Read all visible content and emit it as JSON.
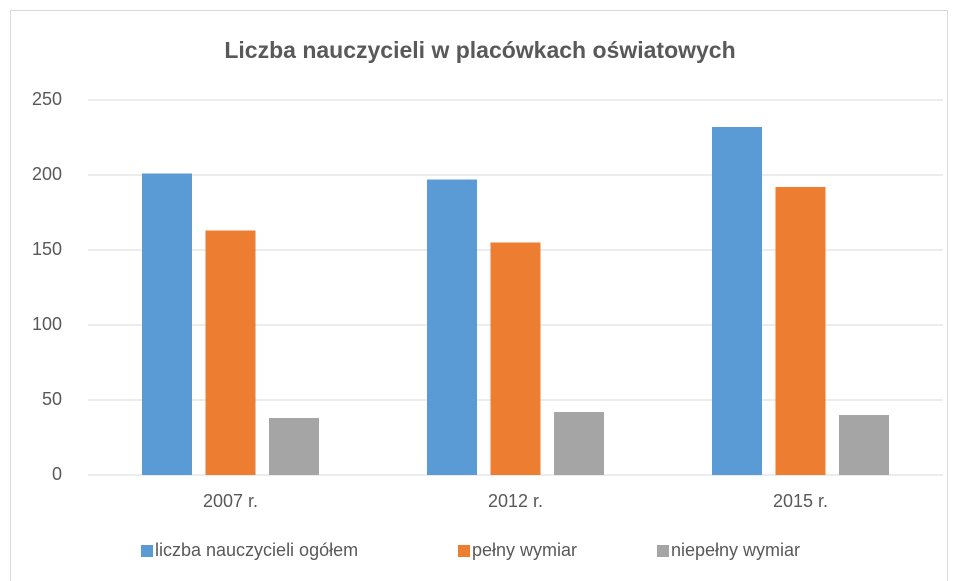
{
  "chart_data": {
    "type": "bar",
    "title": "Liczba nauczycieli w placówkach oświatowych",
    "categories": [
      "2007 r.",
      "2012 r.",
      "2015 r."
    ],
    "series": [
      {
        "name": "liczba nauczycieli ogółem",
        "color": "#5b9bd5",
        "values": [
          201,
          197,
          232
        ]
      },
      {
        "name": "pełny wymiar",
        "color": "#ed7d31",
        "values": [
          163,
          155,
          192
        ]
      },
      {
        "name": "niepełny wymiar",
        "color": "#a5a5a5",
        "values": [
          38,
          42,
          40
        ]
      }
    ],
    "ylim": [
      0,
      250
    ],
    "yticks": [
      0,
      50,
      100,
      150,
      200,
      250
    ],
    "grid": true,
    "legend": "bottom"
  }
}
